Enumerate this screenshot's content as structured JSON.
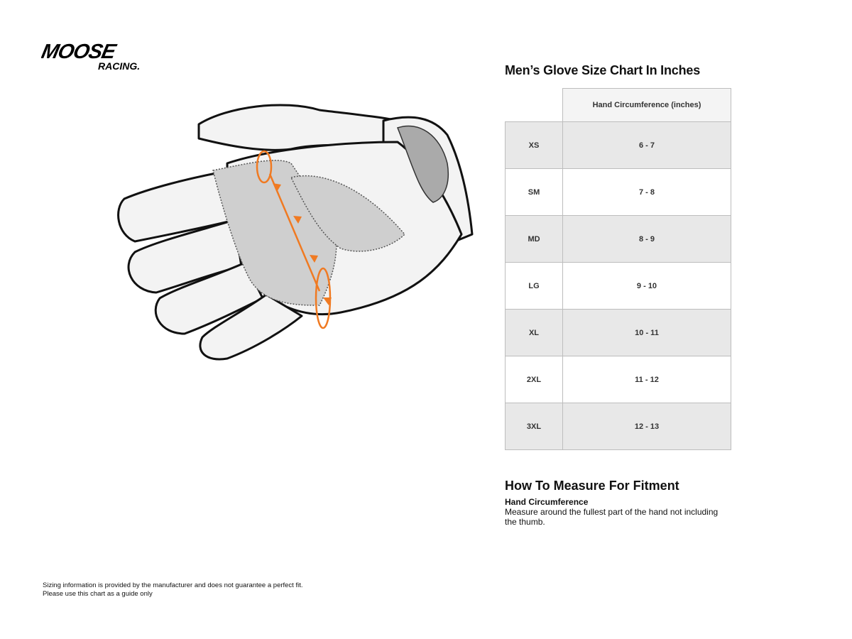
{
  "logo": {
    "brand": "MOOSE",
    "sub": "RACING."
  },
  "chart": {
    "title": "Men’s Glove Size Chart In Inches",
    "column_header": "Hand Circumference (inches)",
    "rows": [
      {
        "size": "XS",
        "value": "6 - 7"
      },
      {
        "size": "SM",
        "value": "7 - 8"
      },
      {
        "size": "MD",
        "value": "8 - 9"
      },
      {
        "size": "LG",
        "value": "9 - 10"
      },
      {
        "size": "XL",
        "value": "10 - 11"
      },
      {
        "size": "2XL",
        "value": "11 - 12"
      },
      {
        "size": "3XL",
        "value": "12 - 13"
      }
    ]
  },
  "measure": {
    "title": "How To Measure For Fitment",
    "subtitle": "Hand Circumference",
    "text": "Measure around the fullest part of the hand not including the thumb."
  },
  "disclaimer": {
    "line1": "Sizing information is provided by the manufacturer and does not guarantee a perfect fit.",
    "line2": "Please use this chart as a guide only"
  },
  "colors": {
    "accent": "#f07a22",
    "row_gray": "#e8e8e8",
    "header_gray": "#f4f4f4"
  }
}
